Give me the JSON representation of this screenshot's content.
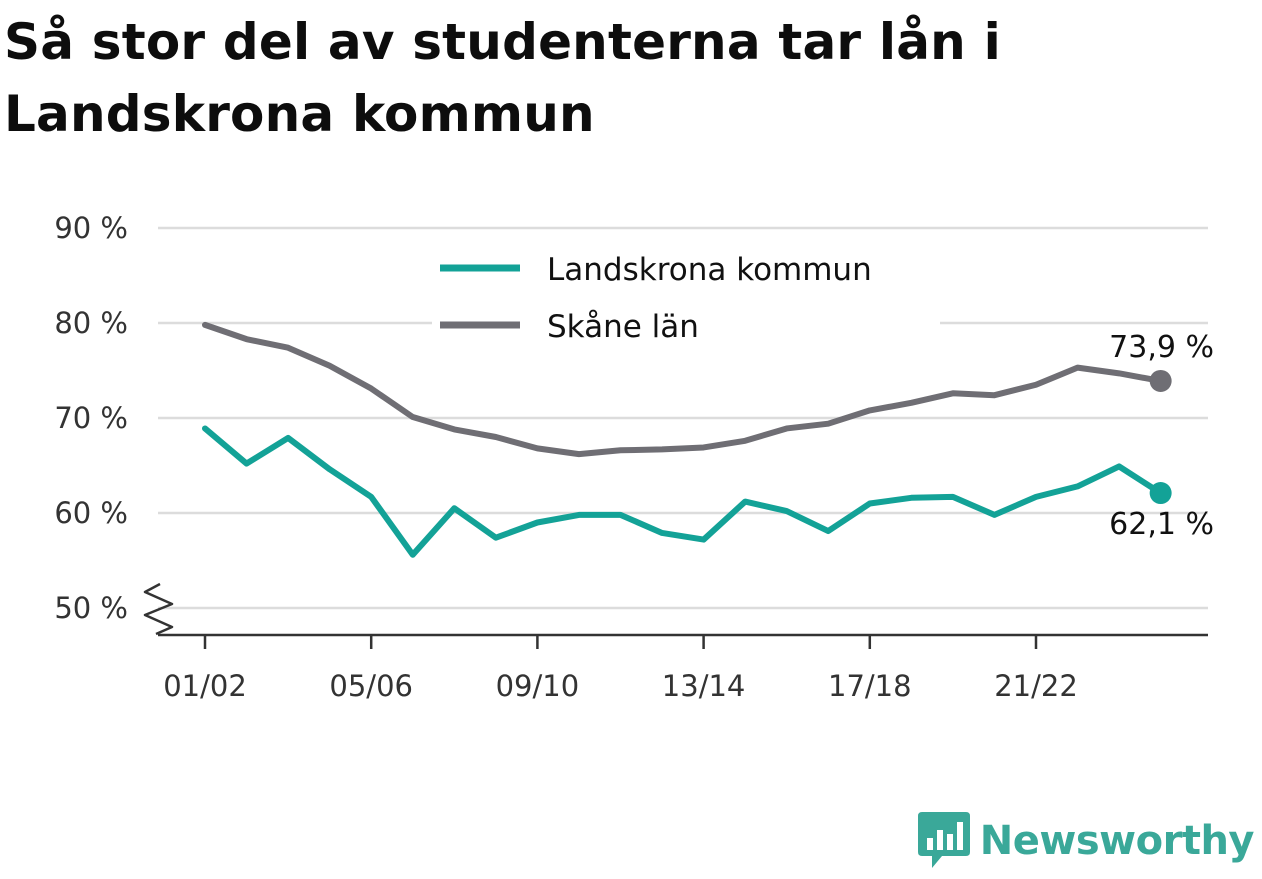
{
  "title": "Så stor del av studenterna tar lån i Landskrona kommun",
  "brand": {
    "name": "Newsworthy",
    "icon": "bar-chart-bubble-icon",
    "color": "#3aa899"
  },
  "chart_data": {
    "type": "line",
    "title": "Så stor del av studenterna tar lån i Landskrona kommun",
    "xlabel": "",
    "ylabel": "",
    "x": [
      "01/02",
      "02/03",
      "03/04",
      "04/05",
      "05/06",
      "06/07",
      "07/08",
      "08/09",
      "09/10",
      "10/11",
      "11/12",
      "12/13",
      "13/14",
      "14/15",
      "15/16",
      "16/17",
      "17/18",
      "18/19",
      "19/20",
      "20/21",
      "21/22",
      "22/23",
      "23/24",
      "24/25"
    ],
    "x_tick_labels": [
      "01/02",
      "05/06",
      "09/10",
      "13/14",
      "17/18",
      "21/22"
    ],
    "y_tick_labels": [
      "50 %",
      "60 %",
      "70 %",
      "80 %",
      "90 %"
    ],
    "ylim": [
      50,
      90
    ],
    "y_axis_break": true,
    "grid": true,
    "legend_position": "top-center",
    "series": [
      {
        "name": "Landskrona kommun",
        "color": "#13a297",
        "values": [
          68.9,
          65.2,
          67.9,
          64.6,
          61.7,
          55.6,
          60.5,
          57.4,
          59.0,
          59.8,
          59.8,
          57.9,
          57.2,
          61.2,
          60.2,
          58.1,
          61.0,
          61.6,
          61.7,
          59.8,
          61.7,
          62.8,
          64.9,
          62.1
        ],
        "end_label": "62,1 %"
      },
      {
        "name": "Skåne län",
        "color": "#6f6e74",
        "values": [
          79.8,
          78.3,
          77.4,
          75.5,
          73.1,
          70.1,
          68.8,
          68.0,
          66.8,
          66.2,
          66.6,
          66.7,
          66.9,
          67.6,
          68.9,
          69.4,
          70.8,
          71.6,
          72.6,
          72.4,
          73.5,
          75.3,
          74.7,
          73.9
        ],
        "end_label": "73,9 %"
      }
    ]
  }
}
